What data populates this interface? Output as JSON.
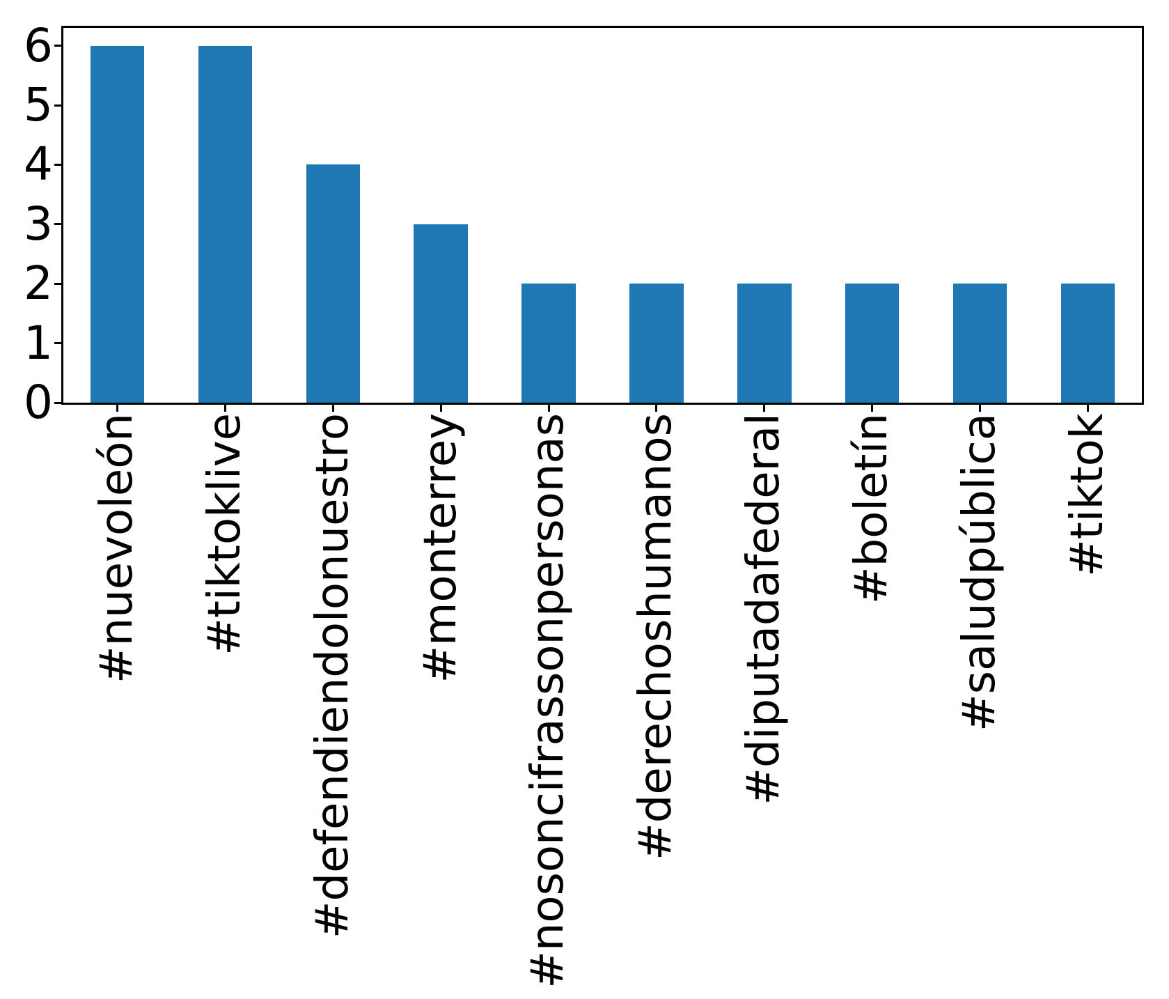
{
  "chart_data": {
    "type": "bar",
    "title": "",
    "xlabel": "",
    "ylabel": "",
    "categories": [
      "#nuevoleón",
      "#tiktoklive",
      "#defendiendolonuestro",
      "#monterrey",
      "#nosoncifrassonpersonas",
      "#derechoshumanos",
      "#diputadafederal",
      "#boletín",
      "#saludpública",
      "#tiktok"
    ],
    "values": [
      6,
      6,
      4,
      3,
      2,
      2,
      2,
      2,
      2,
      2
    ],
    "yticks": [
      0,
      1,
      2,
      3,
      4,
      5,
      6
    ],
    "ytick_labels": [
      "0",
      "1",
      "2",
      "3",
      "4",
      "5",
      "6"
    ],
    "ylim": [
      0,
      6.3
    ],
    "bar_color": "#1f77b4",
    "bar_width_fraction": 0.5,
    "x_label_rotation_deg": 90,
    "grid": false,
    "legend": null,
    "axis_color": "#000000",
    "background_color": "#ffffff"
  }
}
